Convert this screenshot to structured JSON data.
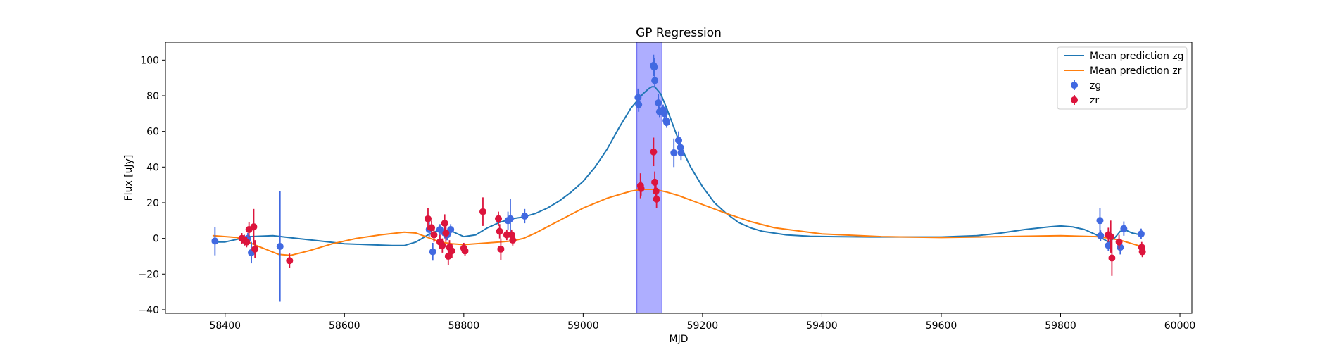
{
  "chart_data": {
    "type": "scatter",
    "title": "GP Regression",
    "xlabel": "MJD",
    "ylabel": "Flux [uJy]",
    "xlim": [
      58300,
      60020
    ],
    "ylim": [
      -42,
      110
    ],
    "xticks": [
      58400,
      58600,
      58800,
      59000,
      59200,
      59400,
      59600,
      59800,
      60000
    ],
    "yticks": [
      -40,
      -20,
      0,
      20,
      40,
      60,
      80,
      100
    ],
    "grid": false,
    "legend_placement": "upper-right",
    "shaded_region": {
      "x": [
        59090,
        59132
      ],
      "color": "#aaaaff"
    },
    "series": [
      {
        "name": "Mean prediction zg",
        "kind": "line",
        "color": "#1f77b4",
        "x": [
          58380,
          58400,
          58440,
          58480,
          58520,
          58560,
          58600,
          58640,
          58680,
          58700,
          58720,
          58740,
          58760,
          58780,
          58800,
          58820,
          58840,
          58860,
          58880,
          58900,
          58920,
          58940,
          58960,
          58980,
          59000,
          59020,
          59040,
          59060,
          59080,
          59090,
          59100,
          59110,
          59115,
          59120,
          59130,
          59140,
          59150,
          59160,
          59170,
          59180,
          59200,
          59220,
          59240,
          59260,
          59280,
          59300,
          59340,
          59380,
          59420,
          59480,
          59540,
          59600,
          59660,
          59700,
          59740,
          59780,
          59800,
          59820,
          59840,
          59860,
          59875,
          59880,
          59890,
          59900,
          59910,
          59920,
          59935
        ],
        "y": [
          -2,
          -2,
          1,
          1.5,
          0,
          -1.5,
          -3,
          -3.5,
          -4,
          -4,
          -2,
          2,
          5,
          4,
          1,
          2,
          6,
          9,
          11,
          12,
          14,
          17,
          21,
          26,
          32,
          40,
          50,
          62,
          73,
          77,
          81,
          84,
          85,
          85,
          81,
          73,
          64,
          55,
          47,
          40,
          29,
          20,
          14,
          9,
          6,
          4,
          2,
          1.2,
          1,
          0.8,
          0.8,
          0.8,
          1.5,
          3,
          5,
          6.5,
          7,
          6.5,
          5,
          2,
          -1,
          -2,
          0,
          4,
          4.5,
          3,
          2
        ]
      },
      {
        "name": "Mean prediction zr",
        "kind": "line",
        "color": "#ff7f0e",
        "x": [
          58380,
          58420,
          58460,
          58490,
          58510,
          58540,
          58580,
          58620,
          58660,
          58700,
          58720,
          58740,
          58760,
          58780,
          58800,
          58820,
          58840,
          58860,
          58880,
          58900,
          58920,
          58960,
          59000,
          59040,
          59080,
          59100,
          59120,
          59140,
          59160,
          59200,
          59240,
          59280,
          59320,
          59400,
          59500,
          59600,
          59700,
          59800,
          59860,
          59880,
          59900,
          59920,
          59935
        ],
        "y": [
          1.5,
          0.5,
          -5,
          -9,
          -9.5,
          -7,
          -3,
          0,
          2,
          3.5,
          3,
          0.5,
          -2,
          -3,
          -3.5,
          -3,
          -2.5,
          -2,
          -1.5,
          0,
          3,
          10,
          17,
          22.5,
          26.5,
          27.5,
          27.5,
          26,
          24,
          19,
          14,
          9.5,
          6,
          2.5,
          1,
          0.5,
          1,
          1.5,
          1,
          0.2,
          -1,
          -3,
          -4.5
        ]
      },
      {
        "name": "zg",
        "kind": "errorbar",
        "color": "#4169e1",
        "x": [
          58383,
          58432,
          58438,
          58444,
          58492,
          58742,
          58748,
          58760,
          58768,
          58772,
          58778,
          58874,
          58878,
          58902,
          59092,
          59093,
          59118,
          59119,
          59120,
          59126,
          59128,
          59134,
          59136,
          59139,
          59140,
          59152,
          59160,
          59163,
          59164,
          59866,
          59867,
          59880,
          59900,
          59906,
          59935
        ],
        "y": [
          -1.5,
          -1,
          0,
          -8,
          -4.5,
          5,
          -7.5,
          5,
          3,
          2,
          5,
          10,
          11,
          12.5,
          79,
          75,
          97,
          96,
          88.5,
          76,
          71,
          72,
          70,
          66,
          65,
          48,
          55,
          51,
          48,
          10,
          1.5,
          -4,
          -5,
          5.5,
          2.5
        ],
        "yerr": [
          8,
          3,
          3,
          6,
          31,
          4,
          5,
          3,
          3,
          3,
          3,
          5,
          11,
          4,
          5,
          4,
          6,
          5,
          4,
          5,
          3,
          3,
          3,
          3,
          3,
          8,
          5,
          4,
          4,
          7,
          3,
          3,
          4,
          4,
          3
        ]
      },
      {
        "name": "zr",
        "kind": "errorbar",
        "color": "#dc143c",
        "x": [
          58428,
          58432,
          58436,
          58440,
          58448,
          58450,
          58508,
          58740,
          58746,
          58750,
          58760,
          58764,
          58768,
          58770,
          58774,
          58776,
          58780,
          58800,
          58802,
          58832,
          58858,
          58860,
          58862,
          58872,
          58880,
          58882,
          59096,
          59097,
          59118,
          59120,
          59122,
          59123,
          59880,
          59884,
          59886,
          59898,
          59936,
          59937
        ],
        "y": [
          0,
          -1,
          -2,
          5,
          6.5,
          -6,
          -12.5,
          11,
          6,
          2,
          -2,
          -4,
          8.5,
          3,
          -10,
          -5,
          -7,
          -5.5,
          -7,
          15,
          11,
          4,
          -6,
          2,
          2,
          -1,
          29.5,
          28,
          48.5,
          31.5,
          26.5,
          22,
          2,
          1,
          -11,
          -2,
          -5,
          -7.5
        ],
        "yerr": [
          3,
          3,
          3,
          4,
          10,
          5,
          4,
          6,
          4,
          4,
          4,
          4,
          5,
          5,
          5,
          4,
          4,
          3,
          3,
          8,
          4,
          4,
          6,
          3,
          3,
          3,
          7,
          4,
          8,
          6,
          5,
          5,
          4,
          9,
          10,
          4,
          3,
          3
        ]
      }
    ]
  }
}
